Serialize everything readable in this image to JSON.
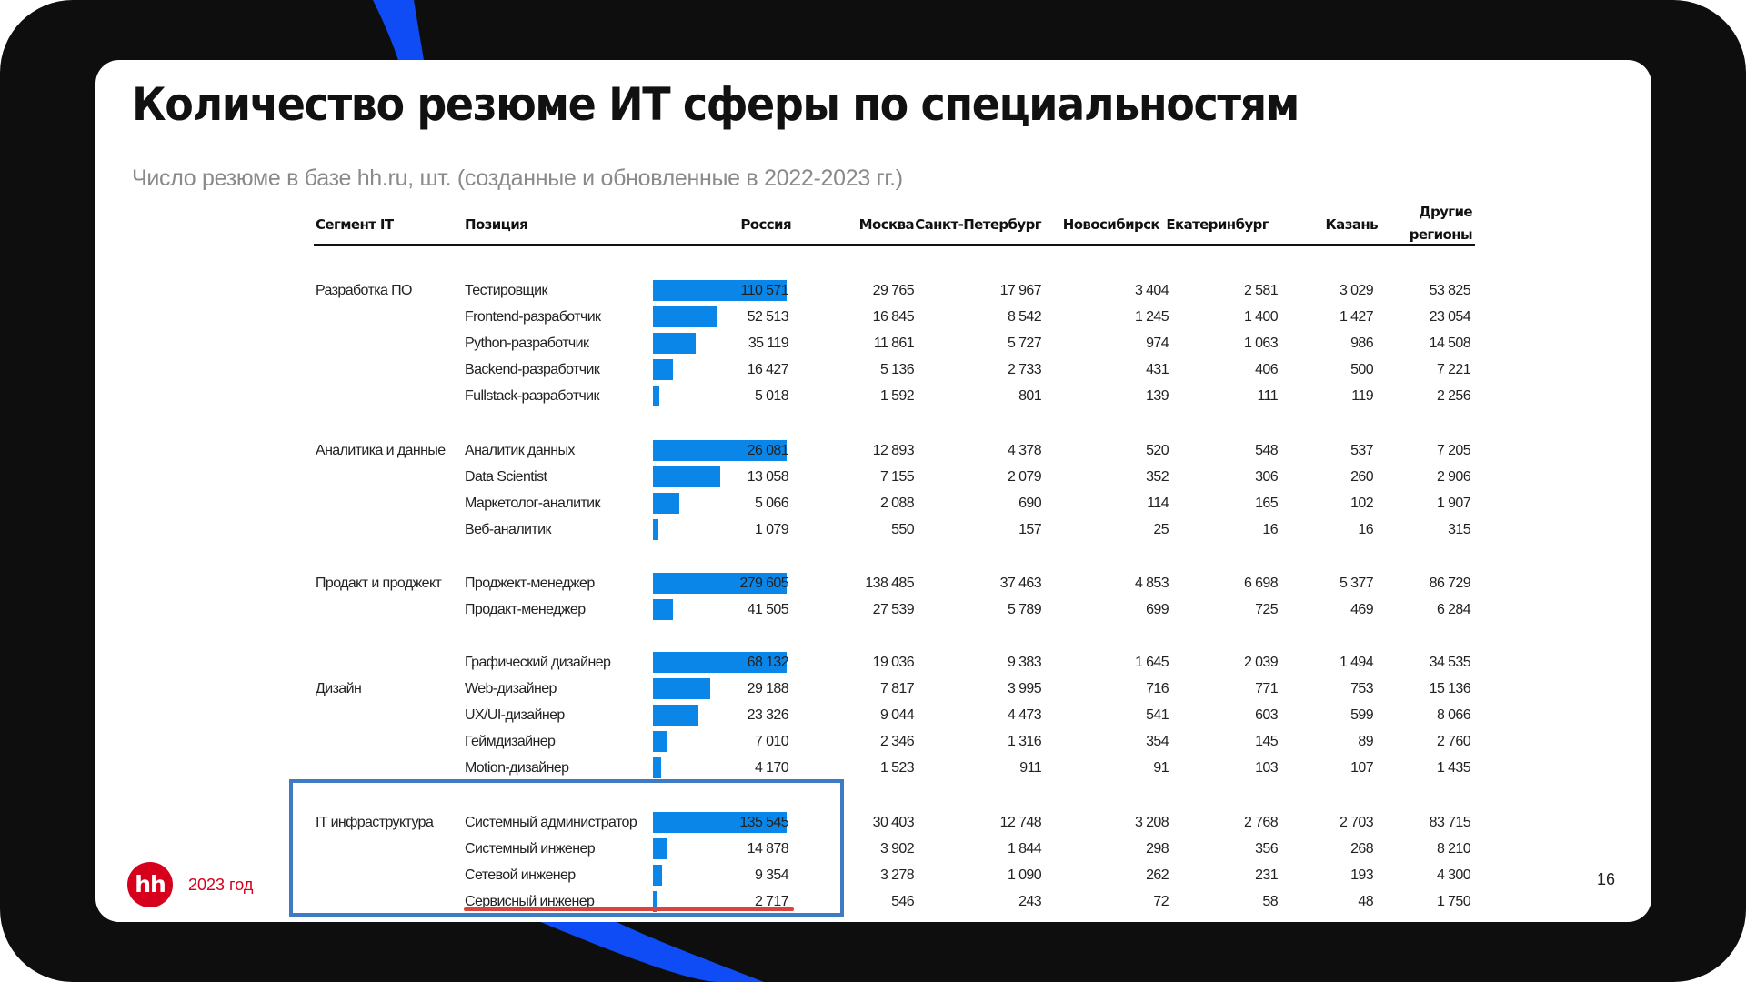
{
  "slide": {
    "title": "Количество резюме ИТ сферы по специальностям",
    "subtitle": "Число резюме в базе hh.ru, шт. (созданные и обновленные в 2022-2023 гг.)",
    "year_label": "2023 год",
    "logo_text": "hh",
    "page_number": "16"
  },
  "colors": {
    "bar": "#0a86e8",
    "highlight_box": "#3f7bc2",
    "underline": "#d9453d",
    "brand_red": "#d6001c",
    "frame": "#0e0e0e",
    "swoosh": "#0f4cf5"
  },
  "table": {
    "headers": {
      "segment": "Сегмент IT",
      "position": "Позиция",
      "russia": "Россия",
      "moscow": "Москва",
      "spb": "Санкт-Петербург",
      "novosibirsk": "Новосибирск",
      "ekaterinburg": "Екатеринбург",
      "kazan": "Казань",
      "other_line1": "Другие",
      "other_line2": "регионы"
    },
    "groups": [
      {
        "segment": "Разработка ПО",
        "rows": [
          {
            "position": "Тестировщик",
            "russia": "110 571",
            "moscow": "29 765",
            "spb": "17 967",
            "novosibirsk": "3 404",
            "ekaterinburg": "2 581",
            "kazan": "3 029",
            "other": "53 825"
          },
          {
            "position": "Frontend-разработчик",
            "russia": "52 513",
            "moscow": "16 845",
            "spb": "8 542",
            "novosibirsk": "1 245",
            "ekaterinburg": "1 400",
            "kazan": "1 427",
            "other": "23 054"
          },
          {
            "position": "Python-разработчик",
            "russia": "35 119",
            "moscow": "11 861",
            "spb": "5 727",
            "novosibirsk": "974",
            "ekaterinburg": "1 063",
            "kazan": "986",
            "other": "14 508"
          },
          {
            "position": "Backend-разработчик",
            "russia": "16 427",
            "moscow": "5 136",
            "spb": "2 733",
            "novosibirsk": "431",
            "ekaterinburg": "406",
            "kazan": "500",
            "other": "7 221"
          },
          {
            "position": "Fullstack-разработчик",
            "russia": "5 018",
            "moscow": "1 592",
            "spb": "801",
            "novosibirsk": "139",
            "ekaterinburg": "111",
            "kazan": "119",
            "other": "2 256"
          }
        ]
      },
      {
        "segment": "Аналитика и данные",
        "rows": [
          {
            "position": "Аналитик данных",
            "russia": "26 081",
            "moscow": "12 893",
            "spb": "4 378",
            "novosibirsk": "520",
            "ekaterinburg": "548",
            "kazan": "537",
            "other": "7 205"
          },
          {
            "position": "Data Scientist",
            "russia": "13 058",
            "moscow": "7 155",
            "spb": "2 079",
            "novosibirsk": "352",
            "ekaterinburg": "306",
            "kazan": "260",
            "other": "2 906"
          },
          {
            "position": "Маркетолог-аналитик",
            "russia": "5 066",
            "moscow": "2 088",
            "spb": "690",
            "novosibirsk": "114",
            "ekaterinburg": "165",
            "kazan": "102",
            "other": "1 907"
          },
          {
            "position": "Веб-аналитик",
            "russia": "1 079",
            "moscow": "550",
            "spb": "157",
            "novosibirsk": "25",
            "ekaterinburg": "16",
            "kazan": "16",
            "other": "315"
          }
        ]
      },
      {
        "segment": "Продакт и проджект",
        "rows": [
          {
            "position": "Проджект-менеджер",
            "russia": "279 605",
            "moscow": "138 485",
            "spb": "37 463",
            "novosibirsk": "4 853",
            "ekaterinburg": "6 698",
            "kazan": "5 377",
            "other": "86 729"
          },
          {
            "position": "Продакт-менеджер",
            "russia": "41 505",
            "moscow": "27 539",
            "spb": "5 789",
            "novosibirsk": "699",
            "ekaterinburg": "725",
            "kazan": "469",
            "other": "6 284"
          }
        ]
      },
      {
        "segment": "Дизайн",
        "rows": [
          {
            "position": "Графический дизайнер",
            "russia": "68 132",
            "moscow": "19 036",
            "spb": "9 383",
            "novosibirsk": "1 645",
            "ekaterinburg": "2 039",
            "kazan": "1 494",
            "other": "34 535"
          },
          {
            "position": "Web-дизайнер",
            "russia": "29 188",
            "moscow": "7 817",
            "spb": "3 995",
            "novosibirsk": "716",
            "ekaterinburg": "771",
            "kazan": "753",
            "other": "15 136"
          },
          {
            "position": "UX/UI-дизайнер",
            "russia": "23 326",
            "moscow": "9 044",
            "spb": "4 473",
            "novosibirsk": "541",
            "ekaterinburg": "603",
            "kazan": "599",
            "other": "8 066"
          },
          {
            "position": "Геймдизайнер",
            "russia": "7 010",
            "moscow": "2 346",
            "spb": "1 316",
            "novosibirsk": "354",
            "ekaterinburg": "145",
            "kazan": "89",
            "other": "2 760"
          },
          {
            "position": "Motion-дизайнер",
            "russia": "4 170",
            "moscow": "1 523",
            "spb": "911",
            "novosibirsk": "91",
            "ekaterinburg": "103",
            "kazan": "107",
            "other": "1 435"
          }
        ]
      },
      {
        "segment": "IT инфраструктура",
        "rows": [
          {
            "position": "Системный администратор",
            "russia": "135 545",
            "moscow": "30 403",
            "spb": "12 748",
            "novosibirsk": "3 208",
            "ekaterinburg": "2 768",
            "kazan": "2 703",
            "other": "83 715"
          },
          {
            "position": "Системный инженер",
            "russia": "14 878",
            "moscow": "3 902",
            "spb": "1 844",
            "novosibirsk": "298",
            "ekaterinburg": "356",
            "kazan": "268",
            "other": "8 210"
          },
          {
            "position": "Сетевой инженер",
            "russia": "9 354",
            "moscow": "3 278",
            "spb": "1 090",
            "novosibirsk": "262",
            "ekaterinburg": "231",
            "kazan": "193",
            "other": "4 300"
          },
          {
            "position": "Сервисный инженер",
            "russia": "2 717",
            "moscow": "546",
            "spb": "243",
            "novosibirsk": "72",
            "ekaterinburg": "58",
            "kazan": "48",
            "other": "1 750"
          }
        ]
      }
    ]
  },
  "chart_data": {
    "type": "table",
    "title": "Количество резюме ИТ сферы по специальностям",
    "subtitle": "Число резюме в базе hh.ru, шт. (созданные и обновленные в 2022-2023 гг.)",
    "columns": [
      "Сегмент IT",
      "Позиция",
      "Россия",
      "Москва",
      "Санкт-Петербург",
      "Новосибирск",
      "Екатеринбург",
      "Казань",
      "Другие регионы"
    ],
    "bar_column": "Россия",
    "bar_scaling": "per-segment, largest position = full width",
    "highlighted_segment": "IT инфраструктура",
    "underlined_row": "Сервисный инженер"
  }
}
